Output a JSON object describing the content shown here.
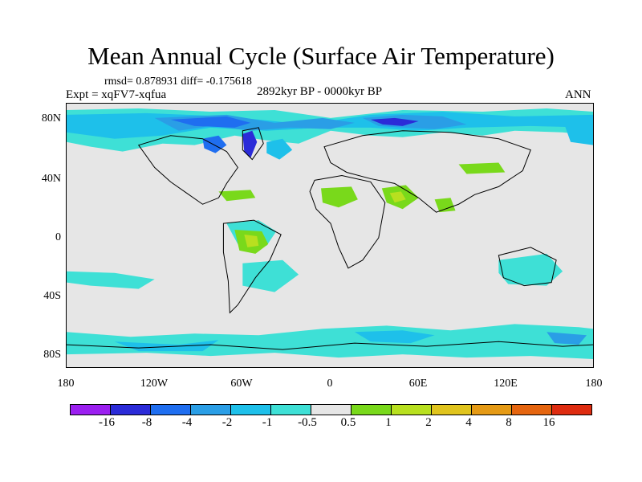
{
  "title": "Mean Annual Cycle (Surface Air Temperature)",
  "stats_text": "rmsd= 0.878931 diff= -0.175618",
  "experiment_label": "Expt = xqFV7-xqfua",
  "period_label": "2892kyr BP - 0000kyr BP",
  "season_label": "ANN",
  "y_ticks": [
    "80N",
    "40N",
    "0",
    "40S",
    "80S"
  ],
  "x_ticks": [
    "180",
    "120W",
    "60W",
    "0",
    "60E",
    "120E",
    "180"
  ],
  "colorbar": {
    "labels": [
      "-16",
      "-8",
      "-4",
      "-2",
      "-1",
      "-0.5",
      "0.5",
      "1",
      "2",
      "4",
      "8",
      "16"
    ],
    "colors": [
      "#9b1ff0",
      "#2b2bd8",
      "#1f6ef0",
      "#2a9ee6",
      "#1ec0ea",
      "#3ee0d6",
      "#e6e6e6",
      "#79d91b",
      "#b8e01f",
      "#e0c41d",
      "#e59a15",
      "#e5650f",
      "#de2c10"
    ]
  },
  "colors": {
    "land_background": "#e6e6e6",
    "cool_light": "#3ee0d6",
    "cool_mid": "#1ec0ea",
    "cool_strong": "#2a9ee6",
    "cool_deep": "#1f6ef0",
    "cool_extreme": "#2b2bd8",
    "warm_light": "#79d91b",
    "warm_mid": "#b8e01f"
  }
}
